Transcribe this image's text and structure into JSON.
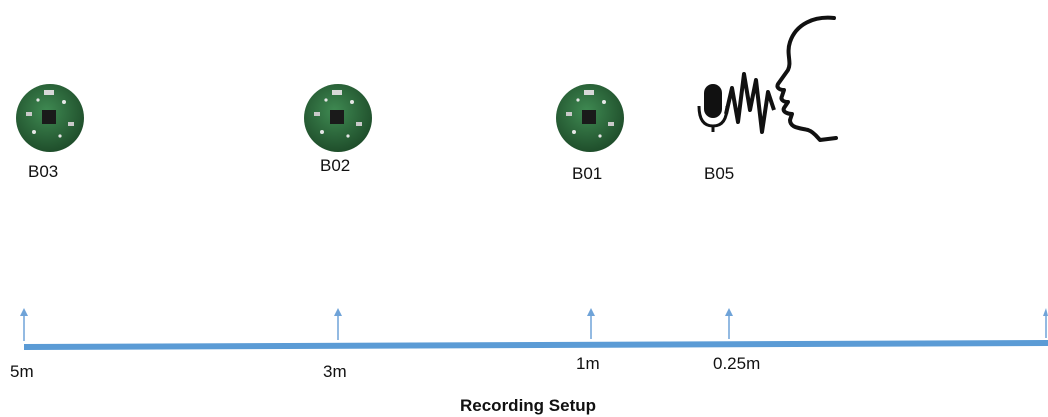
{
  "devices": [
    {
      "id": "B03"
    },
    {
      "id": "B02"
    },
    {
      "id": "B01"
    },
    {
      "id": "B05"
    }
  ],
  "distance_labels": [
    "5m",
    "3m",
    "1m",
    "0.25m"
  ],
  "caption": "Recording Setup",
  "colors": {
    "axis": "#5b9bd5",
    "arrow": "#6fa3d8",
    "board_green": "#2f6a3e",
    "ink": "#111111"
  },
  "icons": {
    "speaker": "speaking-person-icon",
    "microphone": "microphone-icon",
    "board": "circuit-board-icon"
  }
}
